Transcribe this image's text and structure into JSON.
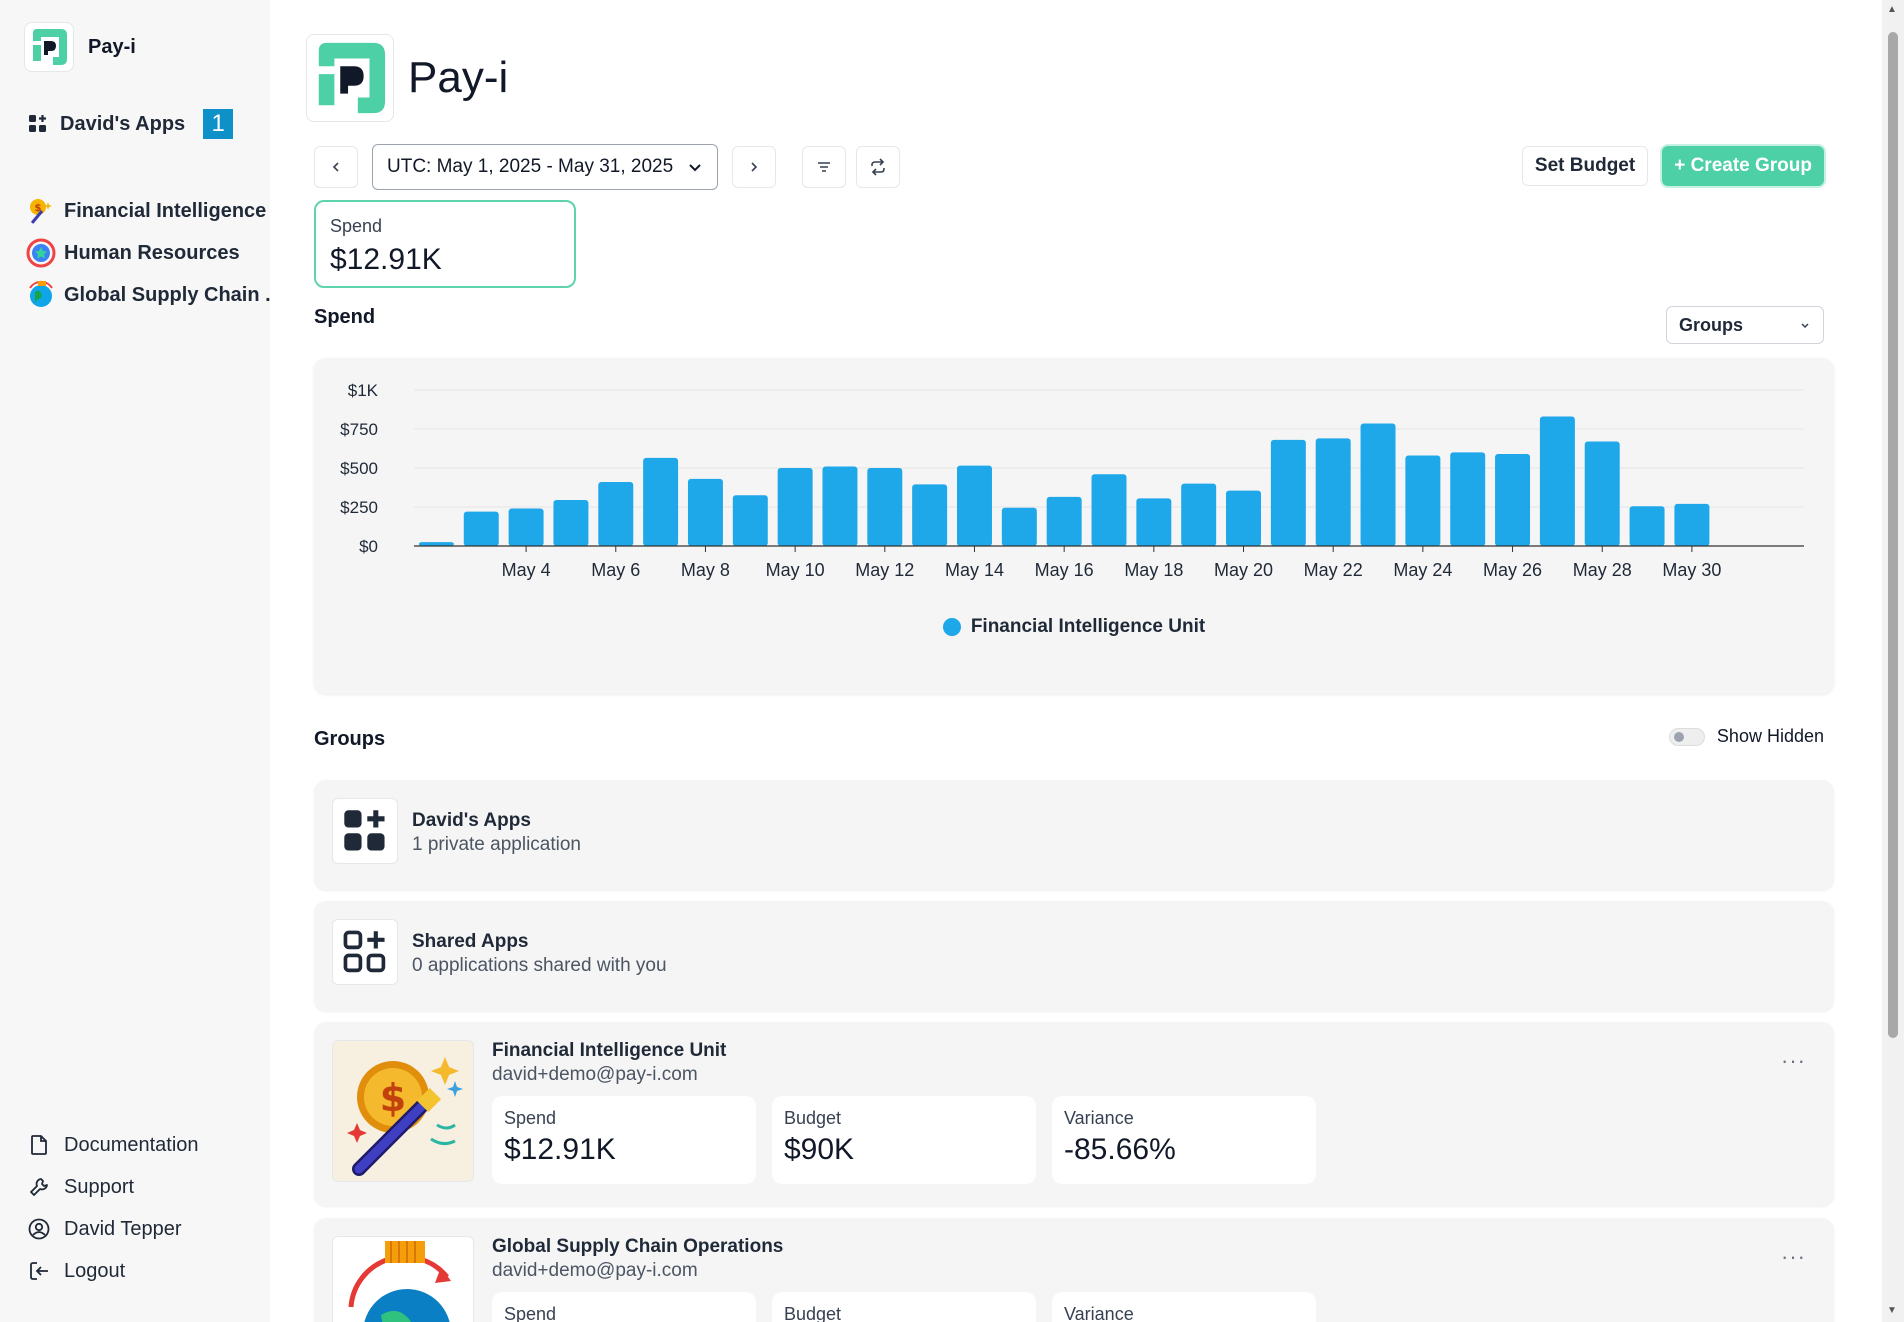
{
  "sidebar": {
    "brand": "Pay-i",
    "my_apps_label": "David's Apps",
    "my_apps_count": "1",
    "apps": [
      {
        "label": "Financial Intelligence ...",
        "icon": "money-wand-icon"
      },
      {
        "label": "Human Resources",
        "icon": "hr-badge-icon"
      },
      {
        "label": "Global Supply Chain ...",
        "icon": "globe-icon"
      }
    ],
    "bottom": [
      {
        "label": "Documentation",
        "icon": "document-icon"
      },
      {
        "label": "Support",
        "icon": "wrench-icon"
      },
      {
        "label": "David Tepper",
        "icon": "user-icon"
      },
      {
        "label": "Logout",
        "icon": "logout-icon"
      }
    ]
  },
  "header": {
    "title": "Pay-i"
  },
  "toolbar": {
    "date_range": "UTC: May 1, 2025 - May 31, 2025",
    "set_budget": "Set Budget",
    "create_group": "+ Create Group"
  },
  "spend_card": {
    "label": "Spend",
    "value": "$12.91K"
  },
  "spend_section": {
    "title": "Spend",
    "groupby": "Groups"
  },
  "chart_data": {
    "type": "bar",
    "categories": [
      "May 2",
      "May 3",
      "May 4",
      "May 5",
      "May 6",
      "May 7",
      "May 8",
      "May 9",
      "May 10",
      "May 11",
      "May 12",
      "May 13",
      "May 14",
      "May 15",
      "May 16",
      "May 17",
      "May 18",
      "May 19",
      "May 20",
      "May 21",
      "May 22",
      "May 23",
      "May 24",
      "May 25",
      "May 26",
      "May 27",
      "May 28",
      "May 29",
      "May 30",
      "May 31"
    ],
    "tick_labels": [
      "May 4",
      "May 6",
      "May 8",
      "May 10",
      "May 12",
      "May 14",
      "May 16",
      "May 18",
      "May 20",
      "May 22",
      "May 24",
      "May 26",
      "May 28",
      "May 30"
    ],
    "series": [
      {
        "name": "Financial Intelligence Unit",
        "color": "#1ea7e9",
        "values": [
          25,
          220,
          240,
          295,
          410,
          565,
          430,
          325,
          500,
          510,
          500,
          395,
          515,
          245,
          315,
          460,
          305,
          400,
          355,
          680,
          690,
          785,
          580,
          600,
          590,
          830,
          670,
          255,
          270,
          0
        ]
      }
    ],
    "y_ticks": [
      "$0",
      "$250",
      "$500",
      "$750",
      "$1K"
    ],
    "ylim": [
      0,
      1000
    ],
    "grid": true,
    "legend": "bottom"
  },
  "groups_section": {
    "title": "Groups",
    "show_hidden": "Show Hidden"
  },
  "groups": [
    {
      "name": "David's Apps",
      "sub": "1 private application",
      "icon": "apps-add-icon"
    },
    {
      "name": "Shared Apps",
      "sub": "0 applications shared with you",
      "icon": "apps-outline-icon"
    }
  ],
  "applications": [
    {
      "name": "Financial Intelligence Unit",
      "owner": "david+demo@pay-i.com",
      "spend_label": "Spend",
      "spend": "$12.91K",
      "budget_label": "Budget",
      "budget": "$90K",
      "variance_label": "Variance",
      "variance": "-85.66%",
      "more": "···"
    },
    {
      "name": "Global Supply Chain Operations",
      "owner": "david+demo@pay-i.com",
      "spend_label": "Spend",
      "budget_label": "Budget",
      "variance_label": "Variance",
      "more": "···"
    }
  ],
  "colors": {
    "accent": "#4dd0a6",
    "bar": "#1ea7e9",
    "badge": "#0e90c8"
  }
}
